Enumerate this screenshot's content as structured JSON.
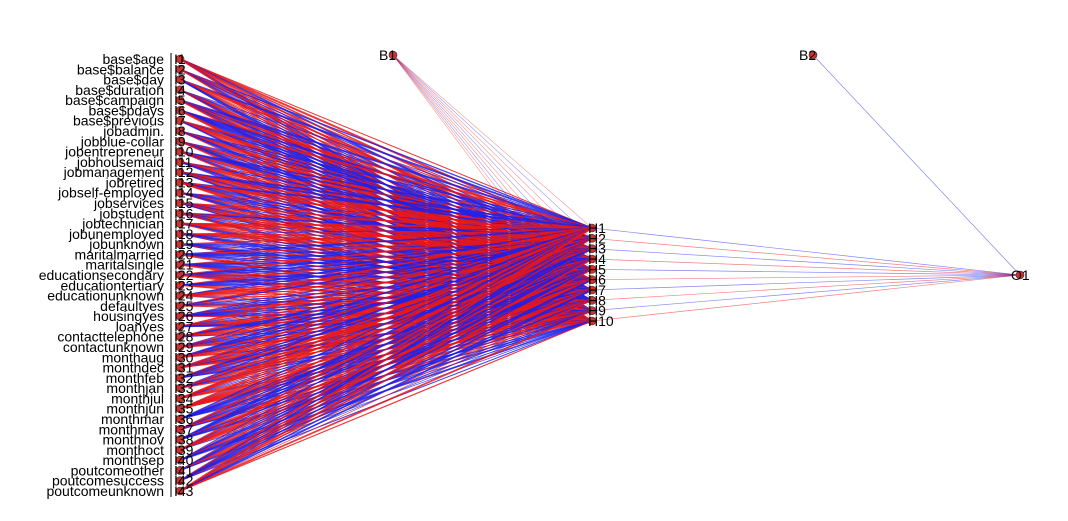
{
  "network": {
    "input_labels": [
      "base$age",
      "base$balance",
      "base$day",
      "base$duration",
      "base$campaign",
      "base$pdays",
      "base$previous",
      "jobadmin.",
      "jobblue-collar",
      "jobentrepreneur",
      "jobhousemaid",
      "jobmanagement",
      "jobretired",
      "jobself-employed",
      "jobservices",
      "jobstudent",
      "jobtechnician",
      "jobunemployed",
      "jobunknown",
      "maritalmarried",
      "maritalsingle",
      "educationsecondary",
      "educationtertiary",
      "educationunknown",
      "defaultyes",
      "housingyes",
      "loanyes",
      "contacttelephone",
      "contactunknown",
      "monthaug",
      "monthdec",
      "monthfeb",
      "monthjan",
      "monthjul",
      "monthjun",
      "monthmar",
      "monthmay",
      "monthnov",
      "monthoct",
      "monthsep",
      "poutcomeother",
      "poutcomesuccess",
      "poutcomeunknown"
    ],
    "input_node_labels": [
      "I1",
      "I2",
      "I3",
      "I4",
      "I5",
      "I6",
      "I7",
      "I8",
      "I9",
      "I10",
      "I11",
      "I12",
      "I13",
      "I14",
      "I15",
      "I16",
      "I17",
      "I18",
      "I19",
      "I20",
      "I21",
      "I22",
      "I23",
      "I24",
      "I25",
      "I26",
      "I27",
      "I28",
      "I29",
      "I30",
      "I31",
      "I32",
      "I33",
      "I34",
      "I35",
      "I36",
      "I37",
      "I38",
      "I39",
      "I40",
      "I41",
      "I42",
      "I43"
    ],
    "hidden_node_labels": [
      "H1",
      "H2",
      "H3",
      "H4",
      "H5",
      "H6",
      "H7",
      "H8",
      "H9",
      "H10"
    ],
    "bias_labels": [
      "B1",
      "B2"
    ],
    "output_node_labels": [
      "O1"
    ],
    "colors": {
      "positive_weight": "#2020e8",
      "negative_weight": "#e81818",
      "node_fill": "#d03030",
      "node_stroke": "#303030"
    }
  }
}
